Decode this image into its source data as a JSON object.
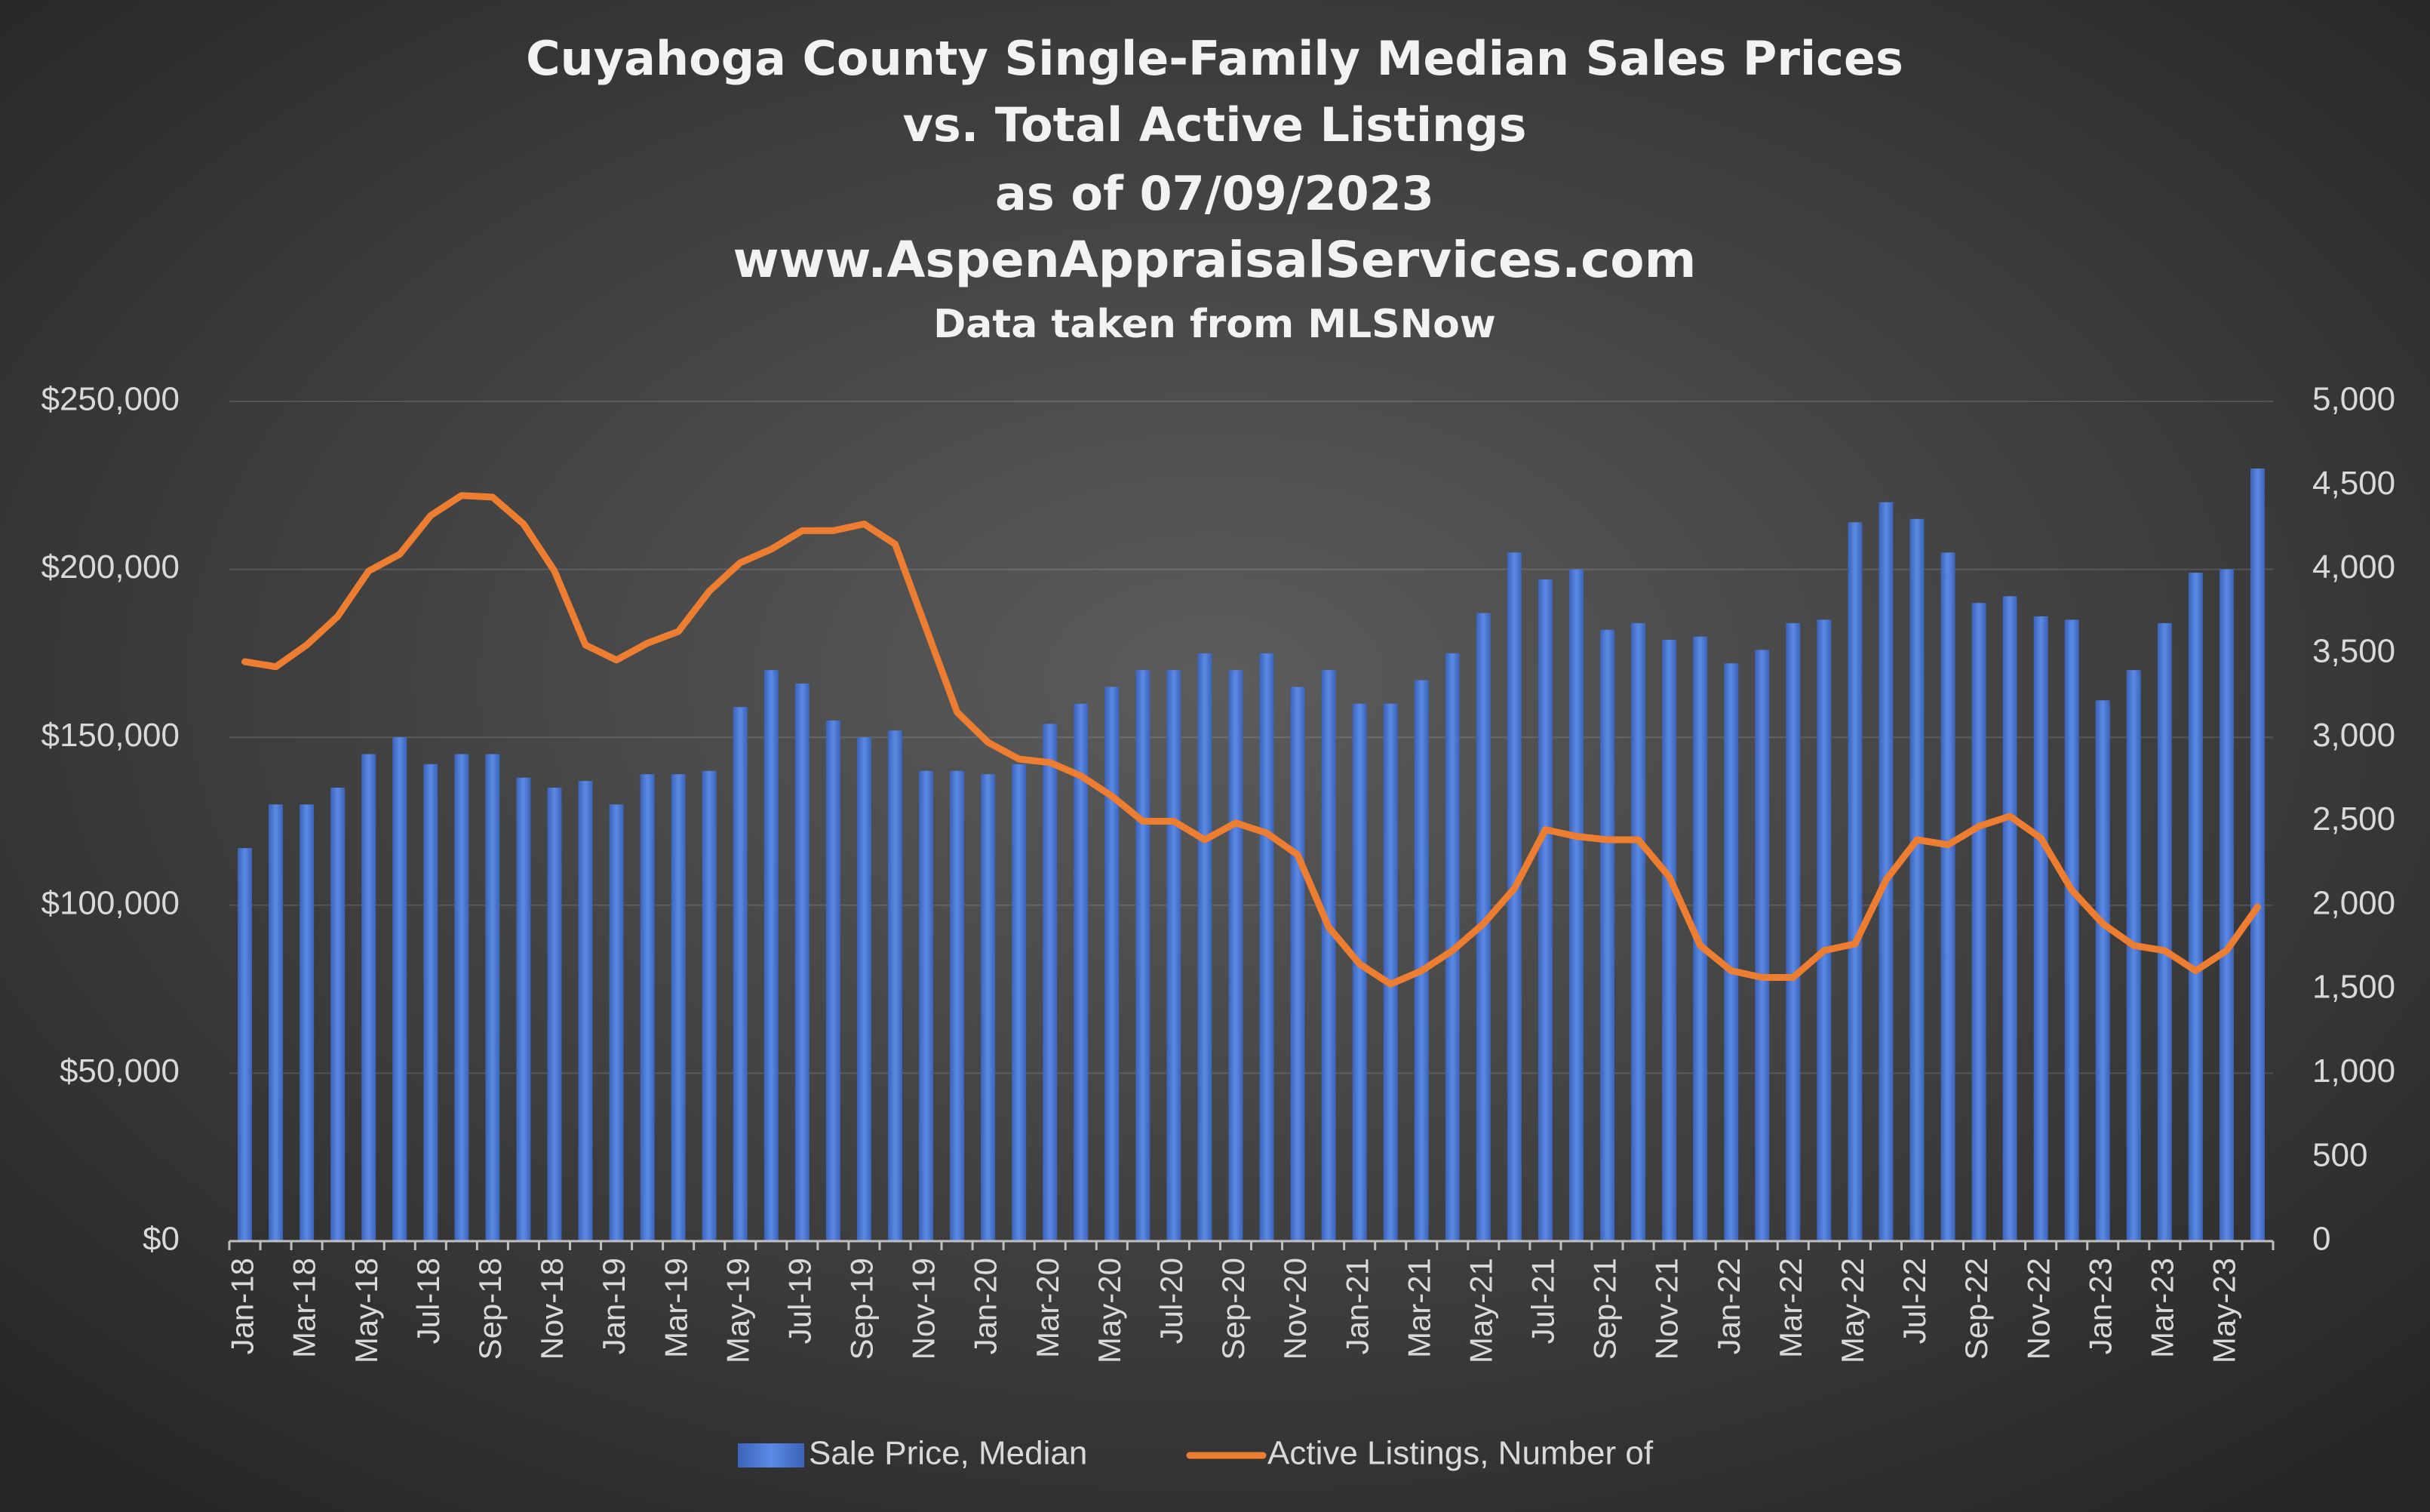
{
  "chart_data": {
    "type": "bar-line",
    "title": [
      "Cuyahoga County Single-Family Median Sales Prices",
      "vs. Total Active Listings",
      "as of 07/09/2023",
      "www.AspenAppraisalServices.com"
    ],
    "subtitle": "Data taken from MLSNow",
    "categories": [
      "Jan-18",
      null,
      "Mar-18",
      null,
      "May-18",
      null,
      "Jul-18",
      null,
      "Sep-18",
      null,
      "Nov-18",
      null,
      "Jan-19",
      null,
      "Mar-19",
      null,
      "May-19",
      null,
      "Jul-19",
      null,
      "Sep-19",
      null,
      "Nov-19",
      null,
      "Jan-20",
      null,
      "Mar-20",
      null,
      "May-20",
      null,
      "Jul-20",
      null,
      "Sep-20",
      null,
      "Nov-20",
      null,
      "Jan-21",
      null,
      "Mar-21",
      null,
      "May-21",
      null,
      "Jul-21",
      null,
      "Sep-21",
      null,
      "Nov-21",
      null,
      "Jan-22",
      null,
      "Mar-22",
      null,
      "May-22",
      null,
      "Jul-22",
      null,
      "Sep-22",
      null,
      "Nov-22",
      null,
      "Jan-23",
      null,
      "Mar-23",
      null,
      "May-23",
      null
    ],
    "series": [
      {
        "name": "Sale Price, Median",
        "color": "#4a78d4",
        "values": [
          117000,
          130000,
          130000,
          135000,
          145000,
          150000,
          142000,
          145000,
          145000,
          138000,
          135000,
          137000,
          130000,
          139000,
          139000,
          140000,
          159000,
          170000,
          166000,
          155000,
          150000,
          152000,
          140000,
          140000,
          139000,
          142000,
          154000,
          160000,
          165000,
          170000,
          170000,
          175000,
          170000,
          175000,
          165000,
          170000,
          160000,
          160000,
          167000,
          175000,
          187000,
          205000,
          197000,
          200000,
          182000,
          184000,
          179000,
          180000,
          172000,
          176000,
          184000,
          185000,
          214000,
          220000,
          215000,
          205000,
          190000,
          192000,
          186000,
          185000,
          161000,
          170000,
          184000,
          199000,
          200000,
          230000
        ]
      },
      {
        "name": "Active Listings, Number of",
        "color": "#ed7d31",
        "axis": "y2",
        "values": [
          3450,
          3420,
          3550,
          3720,
          3990,
          4090,
          4320,
          4440,
          4430,
          4270,
          3990,
          3550,
          3460,
          3560,
          3630,
          3870,
          4040,
          4120,
          4230,
          4230,
          4270,
          4150,
          3650,
          3150,
          2970,
          2870,
          2850,
          2770,
          2650,
          2500,
          2500,
          2390,
          2490,
          2430,
          2300,
          1870,
          1650,
          1530,
          1610,
          1730,
          1890,
          2100,
          2450,
          2410,
          2390,
          2390,
          2170,
          1760,
          1610,
          1570,
          1570,
          1730,
          1770,
          2150,
          2390,
          2360,
          2470,
          2530,
          2400,
          2090,
          1890,
          1760,
          1730,
          1610,
          1730,
          1990
        ]
      }
    ],
    "ylim": [
      0,
      250000
    ],
    "yticks": [
      {
        "value": 0,
        "label": "$0"
      },
      {
        "value": 50000,
        "label": "$50,000"
      },
      {
        "value": 100000,
        "label": "$100,000"
      },
      {
        "value": 150000,
        "label": "$150,000"
      },
      {
        "value": 200000,
        "label": "$200,000"
      },
      {
        "value": 250000,
        "label": "$250,000"
      }
    ],
    "y2lim": [
      0,
      5000
    ],
    "y2ticks": [
      0,
      500,
      {
        "value": 1000,
        "label": "1,000"
      },
      {
        "value": 1500,
        "label": "1,500"
      },
      {
        "value": 2000,
        "label": "2,000"
      },
      {
        "value": 2500,
        "label": "2,500"
      },
      {
        "value": 3000,
        "label": "3,000"
      },
      {
        "value": 3500,
        "label": "3,500"
      },
      {
        "value": 4000,
        "label": "4,000"
      },
      {
        "value": 4500,
        "label": "4,500"
      },
      {
        "value": 5000,
        "label": "5,000"
      }
    ],
    "grid": true,
    "legend": "bottom"
  }
}
